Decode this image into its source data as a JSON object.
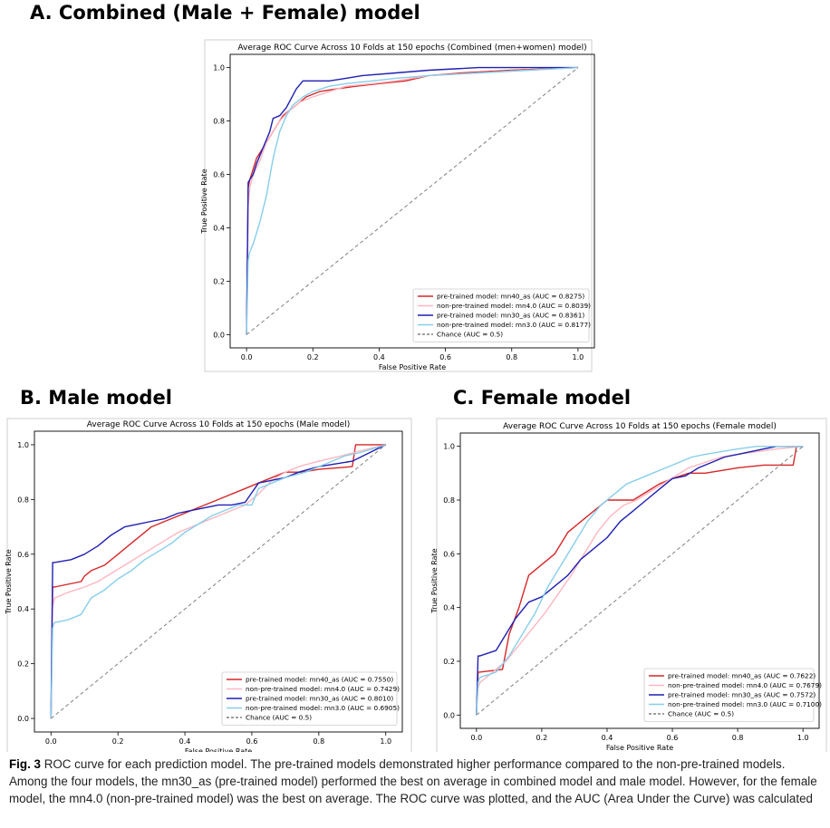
{
  "panels": {
    "a": "A. Combined (Male + Female) model",
    "b": "B. Male model",
    "c": "C. Female model"
  },
  "caption": {
    "label": "Fig. 3",
    "text": "ROC curve for each prediction model. The pre-trained models demonstrated higher performance compared to the non-pre-trained models. Among the four models, the mn30_as (pre-trained model) performed the best on average in combined model and male model. However, for the female model, the mn4.0 (non-pre-trained model) was the best on average. The ROC curve was plotted, and the AUC (Area Under the Curve) was calculated"
  },
  "colors": {
    "mn40_as": "#d62728",
    "mn4_0": "#ffb6c1",
    "mn30_as": "#1f1fb4",
    "mn3_0": "#87ceeb",
    "chance": "#808080"
  },
  "chart_data": [
    {
      "type": "line",
      "title": "Average ROC Curve Across 10 Folds at 150 epochs (Combined (men+women) model)",
      "xlabel": "False Positive Rate",
      "ylabel": "True Positive Rate",
      "xlim": [
        0,
        1
      ],
      "ylim": [
        0,
        1
      ],
      "xticks": [
        "0.0",
        "0.2",
        "0.4",
        "0.6",
        "0.8",
        "1.0"
      ],
      "yticks": [
        "0.0",
        "0.2",
        "0.4",
        "0.6",
        "0.8",
        "1.0"
      ],
      "grid": false,
      "legend": "lower-right",
      "series": [
        {
          "name": "pre-trained model: mn40_as (AUC = 0.8275)",
          "color": "#d62728",
          "x": [
            0,
            0.005,
            0.01,
            0.02,
            0.03,
            0.05,
            0.07,
            0.09,
            0.11,
            0.13,
            0.15,
            0.18,
            0.22,
            0.27,
            0.33,
            0.4,
            0.48,
            0.55,
            0.65,
            0.8,
            1.0
          ],
          "y": [
            0,
            0.55,
            0.58,
            0.62,
            0.66,
            0.7,
            0.74,
            0.78,
            0.82,
            0.84,
            0.86,
            0.89,
            0.91,
            0.92,
            0.93,
            0.94,
            0.95,
            0.97,
            0.98,
            0.99,
            1.0
          ]
        },
        {
          "name": "non-pre-trained model: mn4.0 (AUC = 0.8039)",
          "color": "#ffb6c1",
          "x": [
            0,
            0.005,
            0.01,
            0.02,
            0.04,
            0.06,
            0.08,
            0.1,
            0.13,
            0.16,
            0.2,
            0.25,
            0.3,
            0.38,
            0.45,
            0.55,
            0.7,
            0.85,
            1.0
          ],
          "y": [
            0,
            0.48,
            0.55,
            0.6,
            0.65,
            0.72,
            0.76,
            0.8,
            0.84,
            0.87,
            0.89,
            0.91,
            0.93,
            0.94,
            0.95,
            0.97,
            0.98,
            0.99,
            1.0
          ]
        },
        {
          "name": "pre-trained model: mn30_as (AUC = 0.8361)",
          "color": "#1f1fb4",
          "x": [
            0,
            0.005,
            0.01,
            0.02,
            0.03,
            0.05,
            0.07,
            0.08,
            0.1,
            0.12,
            0.15,
            0.17,
            0.2,
            0.25,
            0.3,
            0.35,
            0.45,
            0.55,
            0.7,
            1.0
          ],
          "y": [
            0,
            0.57,
            0.58,
            0.6,
            0.64,
            0.7,
            0.76,
            0.81,
            0.82,
            0.85,
            0.92,
            0.95,
            0.95,
            0.95,
            0.96,
            0.97,
            0.98,
            0.99,
            1.0,
            1.0
          ]
        },
        {
          "name": "non-pre-trained model: mn3.0 (AUC = 0.8177)",
          "color": "#87ceeb",
          "x": [
            0,
            0.005,
            0.01,
            0.02,
            0.04,
            0.06,
            0.08,
            0.1,
            0.12,
            0.14,
            0.17,
            0.2,
            0.25,
            0.3,
            0.38,
            0.45,
            0.55,
            0.7,
            0.85,
            1.0
          ],
          "y": [
            0,
            0.28,
            0.31,
            0.34,
            0.42,
            0.52,
            0.66,
            0.76,
            0.82,
            0.86,
            0.89,
            0.91,
            0.93,
            0.94,
            0.95,
            0.96,
            0.97,
            0.98,
            0.99,
            1.0
          ]
        },
        {
          "name": "Chance (AUC = 0.5)",
          "color": "#808080",
          "dashed": true,
          "x": [
            0,
            1
          ],
          "y": [
            0,
            1
          ]
        }
      ]
    },
    {
      "type": "line",
      "title": "Average ROC Curve Across 10 Folds at 150 epochs (Male model)",
      "xlabel": "False Positive Rate",
      "ylabel": "True Positive Rate",
      "xlim": [
        0,
        1
      ],
      "ylim": [
        0,
        1
      ],
      "xticks": [
        "0.0",
        "0.2",
        "0.4",
        "0.6",
        "0.8",
        "1.0"
      ],
      "yticks": [
        "0.0",
        "0.2",
        "0.4",
        "0.6",
        "0.8",
        "1.0"
      ],
      "grid": false,
      "legend": "lower-right",
      "series": [
        {
          "name": "pre-trained model: mn40_as (AUC = 0.7550)",
          "color": "#d62728",
          "x": [
            0,
            0.005,
            0.01,
            0.05,
            0.09,
            0.1,
            0.12,
            0.16,
            0.2,
            0.22,
            0.26,
            0.3,
            0.34,
            0.38,
            0.42,
            0.46,
            0.5,
            0.54,
            0.58,
            0.62,
            0.66,
            0.7,
            0.75,
            0.8,
            0.9,
            0.91,
            1.0
          ],
          "y": [
            0,
            0.48,
            0.48,
            0.49,
            0.5,
            0.52,
            0.54,
            0.56,
            0.6,
            0.62,
            0.66,
            0.7,
            0.72,
            0.74,
            0.76,
            0.78,
            0.8,
            0.82,
            0.84,
            0.86,
            0.88,
            0.9,
            0.9,
            0.91,
            0.92,
            1.0,
            1.0
          ]
        },
        {
          "name": "non-pre-trained model: mn4.0 (AUC = 0.7429)",
          "color": "#ffb6c1",
          "x": [
            0,
            0.005,
            0.01,
            0.05,
            0.1,
            0.14,
            0.18,
            0.22,
            0.26,
            0.3,
            0.34,
            0.38,
            0.42,
            0.46,
            0.5,
            0.54,
            0.58,
            0.62,
            0.66,
            0.7,
            0.74,
            0.8,
            0.87,
            0.9,
            1.0
          ],
          "y": [
            0,
            0.4,
            0.44,
            0.46,
            0.48,
            0.5,
            0.53,
            0.56,
            0.59,
            0.62,
            0.65,
            0.68,
            0.7,
            0.72,
            0.74,
            0.76,
            0.78,
            0.82,
            0.87,
            0.9,
            0.92,
            0.94,
            0.96,
            0.97,
            1.0
          ]
        },
        {
          "name": "pre-trained model: mn30_as (AUC = 0.8010)",
          "color": "#1f1fb4",
          "x": [
            0,
            0.005,
            0.01,
            0.06,
            0.1,
            0.14,
            0.18,
            0.22,
            0.26,
            0.3,
            0.34,
            0.38,
            0.42,
            0.46,
            0.5,
            0.54,
            0.58,
            0.62,
            0.66,
            0.7,
            0.74,
            0.8,
            0.85,
            0.9,
            1.0
          ],
          "y": [
            0,
            0.57,
            0.57,
            0.58,
            0.6,
            0.63,
            0.67,
            0.7,
            0.71,
            0.72,
            0.73,
            0.75,
            0.76,
            0.77,
            0.78,
            0.78,
            0.79,
            0.86,
            0.87,
            0.88,
            0.9,
            0.92,
            0.93,
            0.94,
            1.0
          ]
        },
        {
          "name": "non-pre-trained model: mn3.0 (AUC = 0.6905)",
          "color": "#87ceeb",
          "x": [
            0,
            0.005,
            0.01,
            0.05,
            0.09,
            0.12,
            0.16,
            0.2,
            0.24,
            0.28,
            0.32,
            0.36,
            0.4,
            0.44,
            0.48,
            0.52,
            0.56,
            0.6,
            0.62,
            0.66,
            0.7,
            0.76,
            0.82,
            0.88,
            0.92,
            1.0
          ],
          "y": [
            0,
            0.33,
            0.35,
            0.36,
            0.38,
            0.44,
            0.47,
            0.51,
            0.54,
            0.58,
            0.61,
            0.64,
            0.68,
            0.71,
            0.74,
            0.76,
            0.78,
            0.78,
            0.84,
            0.86,
            0.88,
            0.9,
            0.93,
            0.96,
            0.97,
            1.0
          ]
        },
        {
          "name": "Chance (AUC = 0.5)",
          "color": "#808080",
          "dashed": true,
          "x": [
            0,
            1
          ],
          "y": [
            0,
            1
          ]
        }
      ]
    },
    {
      "type": "line",
      "title": "Average ROC Curve Across 10 Folds at 150 epochs (Female model)",
      "xlabel": "False Positive Rate",
      "ylabel": "True Positive Rate",
      "xlim": [
        0,
        1
      ],
      "ylim": [
        0,
        1
      ],
      "xticks": [
        "0.0",
        "0.2",
        "0.4",
        "0.6",
        "0.8",
        "1.0"
      ],
      "yticks": [
        "0.0",
        "0.2",
        "0.4",
        "0.6",
        "0.8",
        "1.0"
      ],
      "grid": false,
      "legend": "lower-right",
      "series": [
        {
          "name": "pre-trained model: mn40_as (AUC = 0.7622)",
          "color": "#d62728",
          "x": [
            0,
            0.005,
            0.01,
            0.08,
            0.1,
            0.13,
            0.16,
            0.2,
            0.24,
            0.28,
            0.32,
            0.36,
            0.4,
            0.44,
            0.48,
            0.52,
            0.56,
            0.6,
            0.65,
            0.7,
            0.75,
            0.8,
            0.88,
            0.97,
            0.98,
            1.0
          ],
          "y": [
            0,
            0.16,
            0.16,
            0.17,
            0.3,
            0.4,
            0.52,
            0.56,
            0.6,
            0.68,
            0.72,
            0.76,
            0.8,
            0.8,
            0.8,
            0.83,
            0.86,
            0.88,
            0.9,
            0.9,
            0.91,
            0.92,
            0.93,
            0.93,
            1.0,
            1.0
          ]
        },
        {
          "name": "non-pre-trained model: mn4.0 (AUC = 0.7679)",
          "color": "#ffb6c1",
          "x": [
            0,
            0.005,
            0.01,
            0.05,
            0.09,
            0.13,
            0.17,
            0.21,
            0.25,
            0.29,
            0.33,
            0.37,
            0.41,
            0.45,
            0.49,
            0.53,
            0.57,
            0.61,
            0.65,
            0.7,
            0.75,
            0.8,
            0.86,
            0.92,
            1.0
          ],
          "y": [
            0,
            0.1,
            0.12,
            0.16,
            0.2,
            0.26,
            0.32,
            0.38,
            0.45,
            0.52,
            0.6,
            0.68,
            0.74,
            0.78,
            0.8,
            0.83,
            0.86,
            0.89,
            0.92,
            0.94,
            0.96,
            0.97,
            0.98,
            0.99,
            1.0
          ]
        },
        {
          "name": "pre-trained model: mn30_as (AUC = 0.7572)",
          "color": "#1f1fb4",
          "x": [
            0,
            0.005,
            0.01,
            0.06,
            0.08,
            0.12,
            0.16,
            0.2,
            0.24,
            0.28,
            0.32,
            0.36,
            0.4,
            0.44,
            0.48,
            0.52,
            0.56,
            0.6,
            0.64,
            0.68,
            0.72,
            0.76,
            0.8,
            0.84,
            0.88,
            0.92,
            1.0
          ],
          "y": [
            0,
            0.22,
            0.22,
            0.24,
            0.28,
            0.36,
            0.42,
            0.44,
            0.48,
            0.52,
            0.58,
            0.62,
            0.66,
            0.72,
            0.76,
            0.8,
            0.84,
            0.88,
            0.89,
            0.92,
            0.94,
            0.96,
            0.97,
            0.98,
            0.99,
            1.0,
            1.0
          ]
        },
        {
          "name": "non-pre-trained model: mn3.0 (AUC = 0.7100)",
          "color": "#87ceeb",
          "x": [
            0,
            0.005,
            0.01,
            0.06,
            0.1,
            0.14,
            0.18,
            0.22,
            0.26,
            0.3,
            0.34,
            0.38,
            0.42,
            0.46,
            0.5,
            0.54,
            0.58,
            0.62,
            0.66,
            0.7,
            0.75,
            0.8,
            0.86,
            0.92,
            1.0
          ],
          "y": [
            0,
            0.12,
            0.14,
            0.16,
            0.22,
            0.3,
            0.38,
            0.48,
            0.56,
            0.64,
            0.72,
            0.78,
            0.82,
            0.86,
            0.88,
            0.9,
            0.92,
            0.94,
            0.96,
            0.97,
            0.98,
            0.99,
            1.0,
            1.0,
            1.0
          ]
        },
        {
          "name": "Chance (AUC = 0.5)",
          "color": "#808080",
          "dashed": true,
          "x": [
            0,
            1
          ],
          "y": [
            0,
            1
          ]
        }
      ]
    }
  ]
}
